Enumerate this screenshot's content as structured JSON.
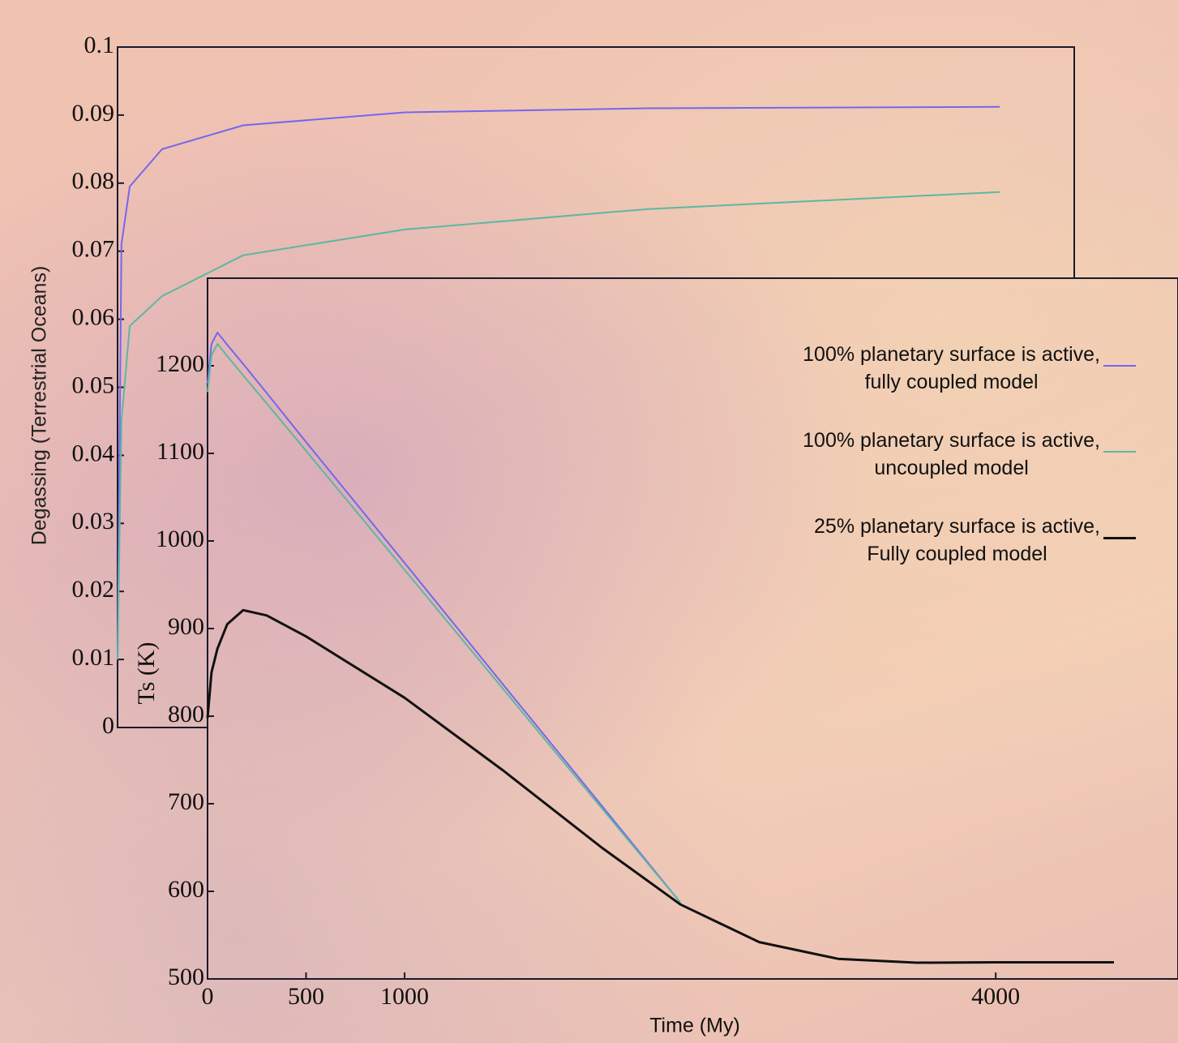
{
  "chart_data": [
    {
      "type": "line",
      "ylabel": "Degassing (Terrestrial Oceans)",
      "x": [
        0,
        20,
        62,
        227,
        641,
        1468,
        2709,
        4500
      ],
      "xlim": [
        0,
        4880
      ],
      "ylim": [
        0,
        0.1
      ],
      "yticks": [
        0,
        0.01,
        0.02,
        0.03,
        0.04,
        0.05,
        0.06,
        0.07,
        0.08,
        0.09,
        0.1
      ],
      "series": [
        {
          "color": "#7566ee",
          "values": [
            0.01,
            0.071,
            0.0795,
            0.085,
            0.0885,
            0.0904,
            0.091,
            0.0912
          ]
        },
        {
          "color": "#5db7a2",
          "values": [
            0.01,
            0.045,
            0.059,
            0.0634,
            0.0694,
            0.0732,
            0.0762,
            0.0787
          ]
        }
      ]
    },
    {
      "type": "line",
      "xlabel": "Time (My)",
      "ylabel": "Ts (K)",
      "x": [
        0,
        20,
        50,
        100,
        181,
        300,
        500,
        1000,
        1500,
        2000,
        2400,
        2800,
        3200,
        3600,
        4000,
        4600
      ],
      "xlim": [
        0,
        4925
      ],
      "ylim": [
        500,
        1300
      ],
      "xticks": [
        0,
        500,
        1000,
        4000
      ],
      "yticks": [
        500,
        600,
        700,
        800,
        900,
        1000,
        1100,
        1200
      ],
      "legend": "upper right",
      "series": [
        {
          "name": "100% planetary surface is active,\nfully coupled model",
          "color": "#7566ee",
          "values": [
            1180,
            1225,
            1238,
            1224,
            1202,
            1169,
            1113,
            975,
            836,
            698,
            587,
            null,
            null,
            null,
            null,
            null
          ]
        },
        {
          "name": "100% planetary surface is active,\nuncoupled model",
          "color": "#5db7a2",
          "values": [
            1170,
            1212,
            1225,
            1211,
            1189,
            1157,
            1103,
            967,
            831,
            695,
            587,
            null,
            null,
            null,
            null,
            null
          ]
        },
        {
          "name": "25% planetary surface is active,\nFully coupled model",
          "color": "#111111",
          "values": [
            798,
            850,
            877,
            905,
            921,
            915,
            891,
            821,
            738,
            650,
            585,
            542,
            523,
            518.5,
            519,
            519
          ]
        }
      ]
    }
  ]
}
